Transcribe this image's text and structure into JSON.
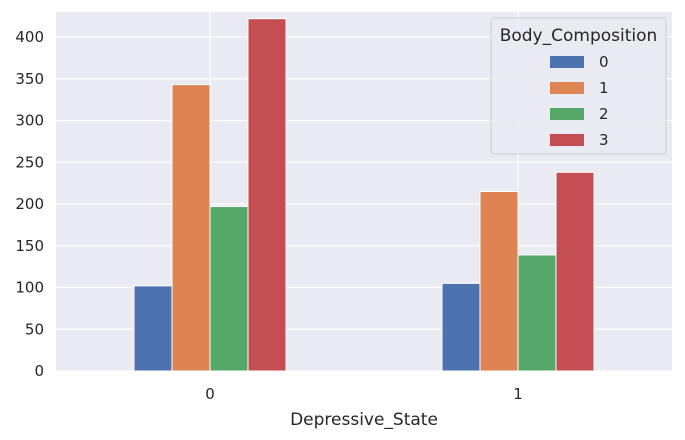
{
  "chart_data": {
    "type": "bar",
    "title": "",
    "xlabel": "Depressive_State",
    "ylabel": "",
    "categories": [
      "0",
      "1"
    ],
    "ylim": [
      0,
      430
    ],
    "yticks": [
      0,
      50,
      100,
      150,
      200,
      250,
      300,
      350,
      400
    ],
    "grid": true,
    "legend": {
      "title": "Body_Composition",
      "placement": "top-right"
    },
    "series": [
      {
        "name": "0",
        "color": "#4c72b0",
        "values": [
          102,
          105
        ]
      },
      {
        "name": "1",
        "color": "#dd8452",
        "values": [
          343,
          215
        ]
      },
      {
        "name": "2",
        "color": "#55a868",
        "values": [
          197,
          139
        ]
      },
      {
        "name": "3",
        "color": "#c44e52",
        "values": [
          422,
          238
        ]
      }
    ]
  }
}
